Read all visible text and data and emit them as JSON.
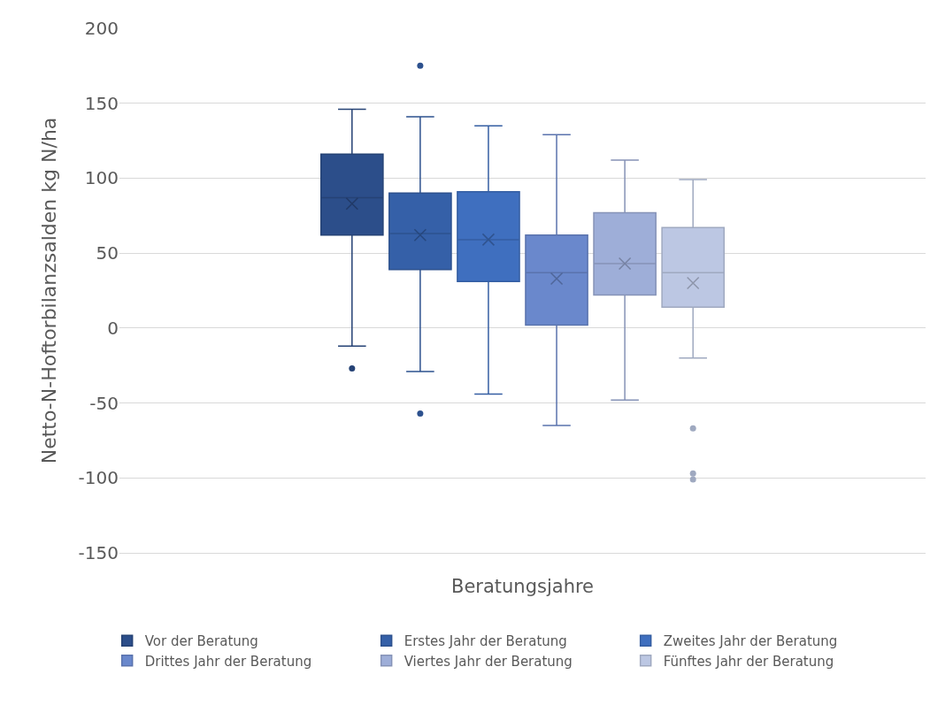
{
  "chart_data": {
    "type": "box",
    "xlabel": "Beratungsjahre",
    "ylabel": "Netto-N-Hoftorbilanzsalden kg N/ha",
    "categories": [
      null
    ],
    "ylim": [
      -150,
      200
    ],
    "yticks": [
      -150,
      -100,
      -50,
      0,
      50,
      100,
      150,
      200
    ],
    "grid": "y",
    "legend": "bottom",
    "tick_labels": "y",
    "marker": "circle",
    "series": [
      {
        "name": "Vor der Beratung",
        "color": "#2c4e8a",
        "boxes": [
          {
            "low": -12,
            "q1": 62,
            "median": 87,
            "q3": 116,
            "high": 146,
            "mean": 83,
            "outliers": [
              -27
            ]
          }
        ]
      },
      {
        "name": "Erstes Jahr der Beratung",
        "color": "#3560a8",
        "boxes": [
          {
            "low": -29,
            "q1": 39,
            "median": 63,
            "q3": 90,
            "high": 141,
            "mean": 62,
            "outliers": [
              175,
              -57
            ]
          }
        ]
      },
      {
        "name": "Zweites Jahr der Beratung",
        "color": "#3f6fbf",
        "boxes": [
          {
            "low": -44,
            "q1": 31,
            "median": 59,
            "q3": 91,
            "high": 135,
            "mean": 59
          }
        ]
      },
      {
        "name": "Drittes Jahr der Beratung",
        "color": "#6a88cc",
        "boxes": [
          {
            "low": -65,
            "q1": 2,
            "median": 37,
            "q3": 62,
            "high": 129,
            "mean": 33
          }
        ]
      },
      {
        "name": "Viertes Jahr der Beratung",
        "color": "#9eaed8",
        "boxes": [
          {
            "low": -48,
            "q1": 22,
            "median": 43,
            "q3": 77,
            "high": 112,
            "mean": 43
          }
        ]
      },
      {
        "name": "Fünftes Jahr der Beratung",
        "color": "#bcc7e3",
        "boxes": [
          {
            "low": -20,
            "q1": 14,
            "median": 37,
            "q3": 67,
            "high": 99,
            "mean": 30,
            "outliers": [
              -67,
              -97,
              -101
            ]
          }
        ]
      }
    ]
  }
}
